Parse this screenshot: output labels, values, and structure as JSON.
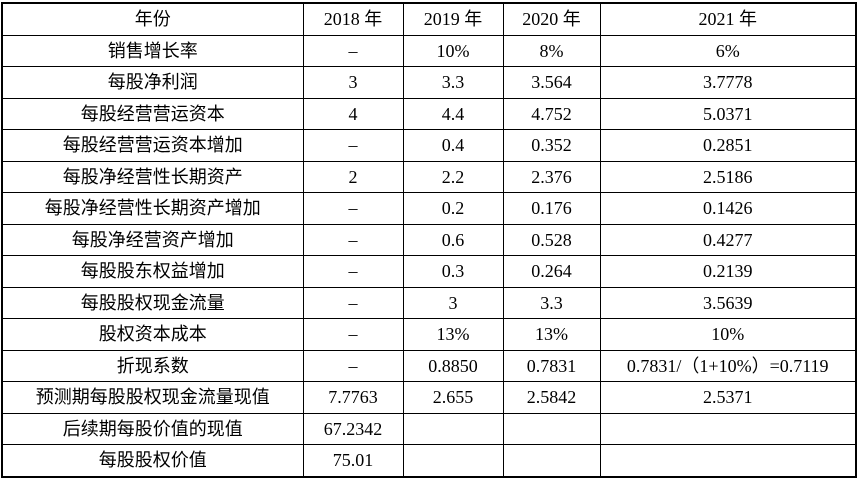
{
  "style": {
    "background": "#ffffff",
    "text_color": "#000000",
    "border_color": "#000000"
  },
  "table": {
    "header": [
      "年份",
      "2018 年",
      "2019 年",
      "2020 年",
      "2021 年"
    ],
    "rows": [
      [
        "销售增长率",
        "–",
        "10%",
        "8%",
        "6%"
      ],
      [
        "每股净利润",
        "3",
        "3.3",
        "3.564",
        "3.7778"
      ],
      [
        "每股经营营运资本",
        "4",
        "4.4",
        "4.752",
        "5.0371"
      ],
      [
        "每股经营营运资本增加",
        "–",
        "0.4",
        "0.352",
        "0.2851"
      ],
      [
        "每股净经营性长期资产",
        "2",
        "2.2",
        "2.376",
        "2.5186"
      ],
      [
        "每股净经营性长期资产增加",
        "–",
        "0.2",
        "0.176",
        "0.1426"
      ],
      [
        "每股净经营资产增加",
        "–",
        "0.6",
        "0.528",
        "0.4277"
      ],
      [
        "每股股东权益增加",
        "–",
        "0.3",
        "0.264",
        "0.2139"
      ],
      [
        "每股股权现金流量",
        "–",
        "3",
        "3.3",
        "3.5639"
      ],
      [
        "股权资本成本",
        "–",
        "13%",
        "13%",
        "10%"
      ],
      [
        "折现系数",
        "–",
        "0.8850",
        "0.7831",
        "0.7831/（1+10%）=0.7119"
      ],
      [
        "预测期每股股权现金流量现值",
        "7.7763",
        "2.655",
        "2.5842",
        "2.5371"
      ],
      [
        "后续期每股价值的现值",
        "67.2342",
        "",
        "",
        ""
      ],
      [
        "每股股权价值",
        "75.01",
        "",
        "",
        ""
      ]
    ]
  }
}
